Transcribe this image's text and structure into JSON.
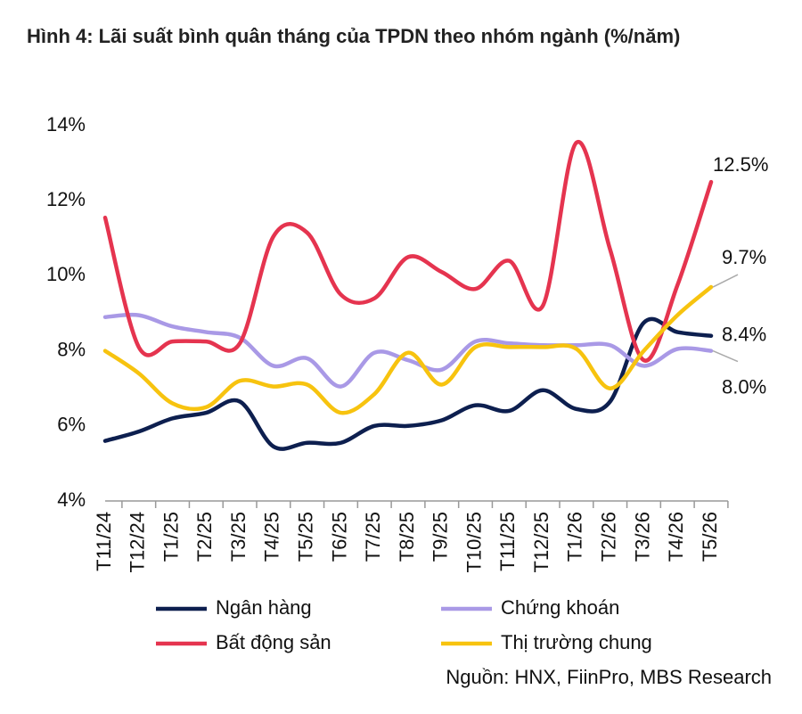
{
  "chart_data": {
    "type": "line",
    "title": "Hình 4: Lãi suất bình quân tháng của TPDN theo nhóm ngành (%/năm)",
    "source": "Nguồn: HNX, FiinPro, MBS Research",
    "categories": [
      "T11/24",
      "T12/24",
      "T1/25",
      "T2/25",
      "T3/25",
      "T4/25",
      "T5/25",
      "T6/25",
      "T7/25",
      "T8/25",
      "T9/25",
      "T10/25",
      "T11/25",
      "T12/25",
      "T1/26",
      "T2/26",
      "T3/26",
      "T4/26",
      "T5/26"
    ],
    "ylim": [
      4,
      14
    ],
    "yticks": [
      {
        "value": 4,
        "label": "4%"
      },
      {
        "value": 6,
        "label": "6%"
      },
      {
        "value": 8,
        "label": "8%"
      },
      {
        "value": 10,
        "label": "10%"
      },
      {
        "value": 12,
        "label": "12%"
      },
      {
        "value": 14,
        "label": "14%"
      }
    ],
    "series": [
      {
        "name": "Ngân hàng",
        "color": "#0d1f4f",
        "values": [
          5.6,
          5.85,
          6.2,
          6.35,
          6.65,
          5.45,
          5.55,
          5.55,
          6.0,
          6.0,
          6.15,
          6.55,
          6.4,
          6.95,
          6.45,
          6.65,
          8.75,
          8.5,
          8.4
        ],
        "value_labels": [
          null,
          null,
          null,
          null,
          null,
          null,
          null,
          null,
          null,
          null,
          null,
          null,
          null,
          null,
          null,
          null,
          null,
          null,
          "8.4%"
        ]
      },
      {
        "name": "Chứng khoán",
        "color": "#a999e6",
        "values": [
          8.9,
          8.95,
          8.65,
          8.5,
          8.35,
          7.6,
          7.8,
          7.05,
          7.95,
          7.75,
          7.5,
          8.25,
          8.2,
          8.15,
          8.15,
          8.15,
          7.6,
          8.05,
          8.0
        ],
        "value_labels": [
          null,
          null,
          null,
          null,
          null,
          null,
          null,
          null,
          null,
          null,
          null,
          null,
          null,
          null,
          null,
          null,
          null,
          null,
          "8.0%"
        ]
      },
      {
        "name": "Bất động sản",
        "color": "#e5344f",
        "values": [
          11.55,
          8.1,
          8.25,
          8.25,
          8.2,
          11.05,
          11.15,
          9.5,
          9.4,
          10.5,
          10.1,
          9.65,
          10.4,
          9.2,
          13.55,
          10.7,
          7.75,
          9.75,
          12.5
        ],
        "value_labels": [
          null,
          null,
          null,
          null,
          null,
          null,
          null,
          null,
          null,
          null,
          null,
          null,
          null,
          null,
          null,
          null,
          null,
          null,
          "12.5%"
        ]
      },
      {
        "name": "Thị trường chung",
        "color": "#f7c30f",
        "values": [
          8.0,
          7.4,
          6.6,
          6.5,
          7.2,
          7.05,
          7.1,
          6.35,
          6.85,
          7.95,
          7.1,
          8.1,
          8.1,
          8.1,
          8.05,
          7.0,
          8.0,
          8.95,
          9.7
        ],
        "value_labels": [
          null,
          null,
          null,
          null,
          null,
          null,
          null,
          null,
          null,
          null,
          null,
          null,
          null,
          null,
          null,
          null,
          null,
          null,
          "9.7%"
        ]
      }
    ]
  }
}
